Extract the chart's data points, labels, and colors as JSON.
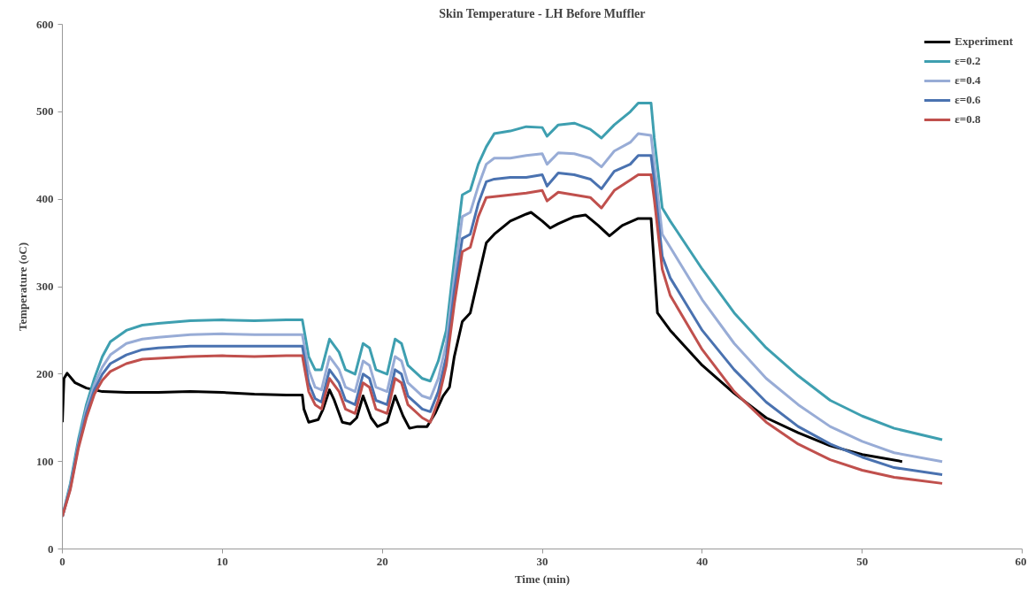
{
  "chart_data": {
    "type": "line",
    "title": "Skin Temperature - LH Before Muffler",
    "xlabel": "Time (min)",
    "ylabel": "Temperature (oC)",
    "xlim": [
      0,
      60
    ],
    "xticks": [
      0,
      10,
      20,
      30,
      40,
      50,
      60
    ],
    "ylim": [
      0,
      600
    ],
    "yticks": [
      0,
      100,
      200,
      300,
      400,
      500,
      600
    ],
    "grid": false,
    "legend": "top right",
    "line_style": "solid",
    "x": [
      0,
      0.5,
      1,
      1.5,
      2,
      2.5,
      3,
      4,
      5,
      6,
      8,
      10,
      12,
      14,
      15,
      15.4,
      15.8,
      16.2,
      16.7,
      17.3,
      17.7,
      18.3,
      18.8,
      19.2,
      19.6,
      20.3,
      20.8,
      21.2,
      21.6,
      22.5,
      23,
      23.5,
      24,
      24.5,
      25,
      25.5,
      26,
      26.5,
      27,
      28,
      29,
      30,
      30.3,
      31,
      32,
      33,
      33.7,
      34.5,
      35.5,
      36,
      36.8,
      37,
      37.5,
      38,
      40,
      42,
      44,
      46,
      48,
      50,
      52,
      55
    ],
    "series": [
      {
        "name": "Experiment",
        "color": "#000000",
        "x": [
          0,
          0.1,
          0.3,
          0.8,
          1.5,
          2.5,
          4,
          6,
          8,
          10,
          12,
          14,
          15,
          15.1,
          15.4,
          16,
          16.3,
          16.7,
          17,
          17.5,
          18,
          18.4,
          18.8,
          19.3,
          19.7,
          20.3,
          20.8,
          21.3,
          21.7,
          22.2,
          22.8,
          23.3,
          23.8,
          24.2,
          24.5,
          25,
          25.5,
          26,
          26.5,
          27,
          28,
          29,
          29.3,
          30,
          30.5,
          31,
          32,
          32.7,
          33.5,
          34.2,
          35,
          36,
          36.8,
          37.2,
          38,
          40,
          42,
          44,
          46,
          48,
          50,
          52.5
        ],
        "values": [
          145,
          195,
          201,
          190,
          184,
          180,
          179,
          179,
          180,
          179,
          177,
          176,
          176,
          160,
          145,
          148,
          160,
          182,
          170,
          145,
          143,
          150,
          175,
          150,
          140,
          145,
          175,
          152,
          138,
          140,
          140,
          155,
          175,
          185,
          220,
          260,
          270,
          310,
          350,
          360,
          375,
          383,
          385,
          375,
          367,
          372,
          380,
          382,
          370,
          358,
          370,
          378,
          378,
          270,
          250,
          210,
          178,
          150,
          133,
          118,
          108,
          100
        ]
      },
      {
        "name": "ε=0.2",
        "color": "#3e9fb0",
        "values": [
          37,
          75,
          125,
          165,
          195,
          220,
          237,
          250,
          256,
          258,
          261,
          262,
          261,
          262,
          262,
          220,
          205,
          205,
          240,
          225,
          205,
          200,
          235,
          230,
          205,
          200,
          240,
          235,
          210,
          195,
          192,
          215,
          250,
          330,
          405,
          410,
          440,
          460,
          475,
          478,
          483,
          482,
          472,
          485,
          487,
          480,
          470,
          485,
          500,
          510,
          510,
          470,
          390,
          375,
          320,
          270,
          230,
          198,
          170,
          152,
          138,
          125
        ]
      },
      {
        "name": "ε=0.4",
        "color": "#98acd6",
        "values": [
          37,
          72,
          120,
          160,
          188,
          208,
          222,
          235,
          240,
          242,
          245,
          246,
          245,
          245,
          245,
          205,
          185,
          182,
          220,
          205,
          185,
          180,
          215,
          210,
          185,
          180,
          220,
          215,
          190,
          175,
          172,
          195,
          235,
          310,
          380,
          385,
          415,
          440,
          447,
          447,
          450,
          452,
          440,
          453,
          452,
          447,
          437,
          455,
          465,
          475,
          473,
          440,
          360,
          345,
          285,
          235,
          195,
          165,
          140,
          123,
          110,
          100
        ]
      },
      {
        "name": "ε=0.6",
        "color": "#4a72b0",
        "values": [
          37,
          70,
          118,
          155,
          182,
          200,
          212,
          222,
          228,
          230,
          232,
          232,
          232,
          232,
          232,
          190,
          172,
          168,
          205,
          190,
          170,
          165,
          200,
          195,
          170,
          165,
          205,
          200,
          175,
          160,
          157,
          180,
          220,
          295,
          355,
          360,
          395,
          420,
          423,
          425,
          425,
          428,
          415,
          430,
          428,
          423,
          412,
          432,
          440,
          450,
          450,
          420,
          335,
          310,
          250,
          205,
          168,
          140,
          120,
          105,
          93,
          85
        ]
      },
      {
        "name": "ε=0.8",
        "color": "#c0504d",
        "values": [
          37,
          68,
          115,
          150,
          177,
          193,
          203,
          212,
          217,
          218,
          220,
          221,
          220,
          221,
          221,
          180,
          165,
          160,
          195,
          180,
          160,
          155,
          190,
          185,
          160,
          155,
          195,
          190,
          165,
          150,
          145,
          170,
          210,
          280,
          340,
          345,
          380,
          402,
          403,
          405,
          407,
          410,
          398,
          408,
          405,
          402,
          390,
          410,
          422,
          428,
          428,
          400,
          320,
          290,
          228,
          180,
          145,
          120,
          102,
          90,
          82,
          75
        ]
      }
    ]
  }
}
